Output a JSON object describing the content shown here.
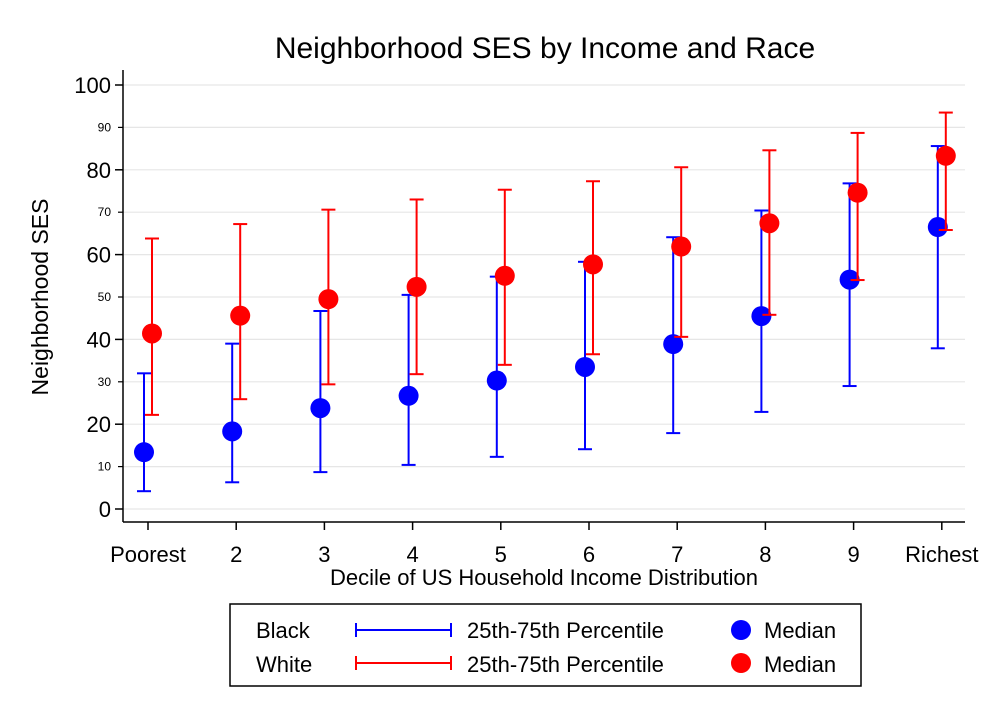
{
  "chart_data": {
    "type": "scatter",
    "title": "Neighborhood SES by Income and Race",
    "xlabel": "Decile of US Household Income Distribution",
    "ylabel": "Neighborhood SES",
    "categories": [
      "Poorest",
      "2",
      "3",
      "4",
      "5",
      "6",
      "7",
      "8",
      "9",
      "Richest"
    ],
    "ylim": [
      0,
      100
    ],
    "y_major_ticks": [
      "0",
      "20",
      "40",
      "60",
      "80",
      "100"
    ],
    "y_minor_ticks": [
      "10",
      "30",
      "50",
      "70",
      "90"
    ],
    "grid": true,
    "series": [
      {
        "name": "Black",
        "color": "#0000ff",
        "median": [
          13.4,
          18.3,
          23.8,
          26.7,
          30.3,
          33.5,
          38.9,
          45.5,
          54.1,
          66.5
        ],
        "p25": [
          4.2,
          6.3,
          8.7,
          10.4,
          12.3,
          14.1,
          17.9,
          22.9,
          29.0,
          37.9
        ],
        "p75": [
          32.0,
          39.0,
          46.7,
          50.5,
          54.8,
          58.3,
          64.1,
          70.4,
          76.8,
          85.6
        ]
      },
      {
        "name": "White",
        "color": "#ff0000",
        "median": [
          41.4,
          45.6,
          49.5,
          52.4,
          55.0,
          57.7,
          61.9,
          67.4,
          74.6,
          83.3
        ],
        "p25": [
          22.2,
          25.9,
          29.4,
          31.8,
          34.0,
          36.5,
          40.6,
          45.8,
          54.0,
          65.8
        ],
        "p75": [
          63.8,
          67.2,
          70.6,
          73.0,
          75.3,
          77.3,
          80.6,
          84.6,
          88.7,
          93.5
        ]
      }
    ],
    "legend": {
      "position": "bottom",
      "range_label": "25th-75th Percentile",
      "median_label": "Median"
    }
  }
}
